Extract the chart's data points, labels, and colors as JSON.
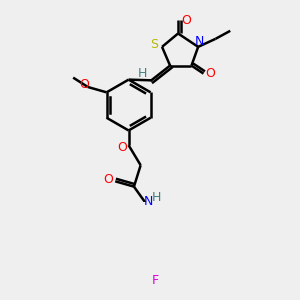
{
  "background_color": "#efefef",
  "atom_colors": {
    "S": "#b8b800",
    "N": "#0000ff",
    "O": "#ff0000",
    "F": "#dd00dd",
    "C": "#000000",
    "H": "#408080"
  },
  "bond_color": "#000000",
  "bond_width": 1.8,
  "figsize": [
    3.0,
    3.0
  ],
  "dpi": 100
}
